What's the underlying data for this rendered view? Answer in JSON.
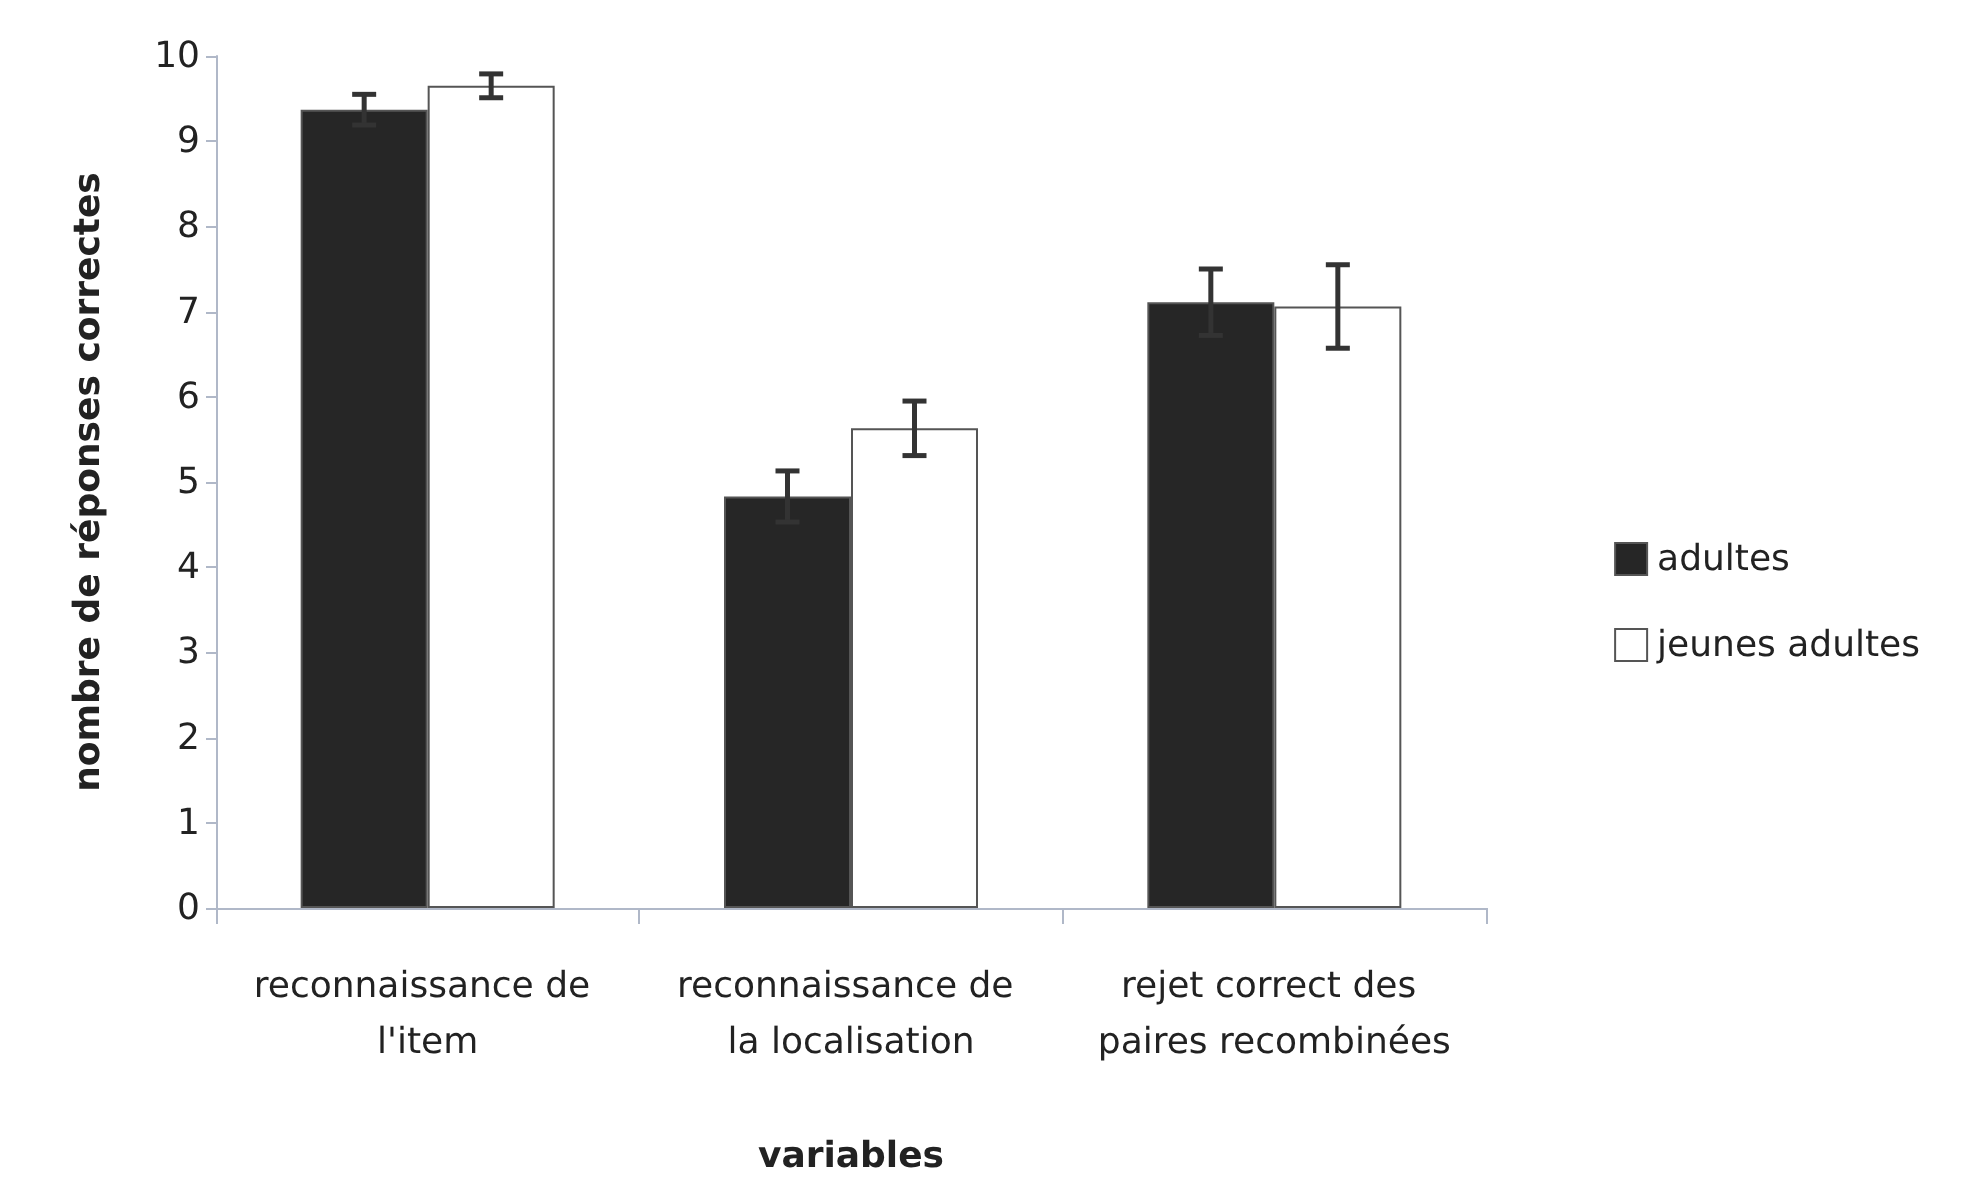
{
  "chart_data": {
    "type": "bar",
    "xlabel": "variables",
    "ylabel": "nombre de réponses correctes",
    "categories": [
      "reconnaissance de l'item",
      "reconnaissance de la localisation",
      "rejet correct des paires recombinées"
    ],
    "series": [
      {
        "name": "adultes",
        "color": "#262626",
        "values": [
          9.37,
          4.83,
          7.11
        ],
        "errors": [
          0.18,
          0.3,
          0.39
        ]
      },
      {
        "name": "jeunes adultes",
        "color": "#ffffff",
        "values": [
          9.65,
          5.63,
          7.06
        ],
        "errors": [
          0.14,
          0.32,
          0.49
        ]
      }
    ],
    "ylim": [
      0,
      10
    ],
    "yticks": [
      0,
      1,
      2,
      3,
      4,
      5,
      6,
      7,
      8,
      9,
      10
    ],
    "grid": false,
    "legend": "right"
  }
}
